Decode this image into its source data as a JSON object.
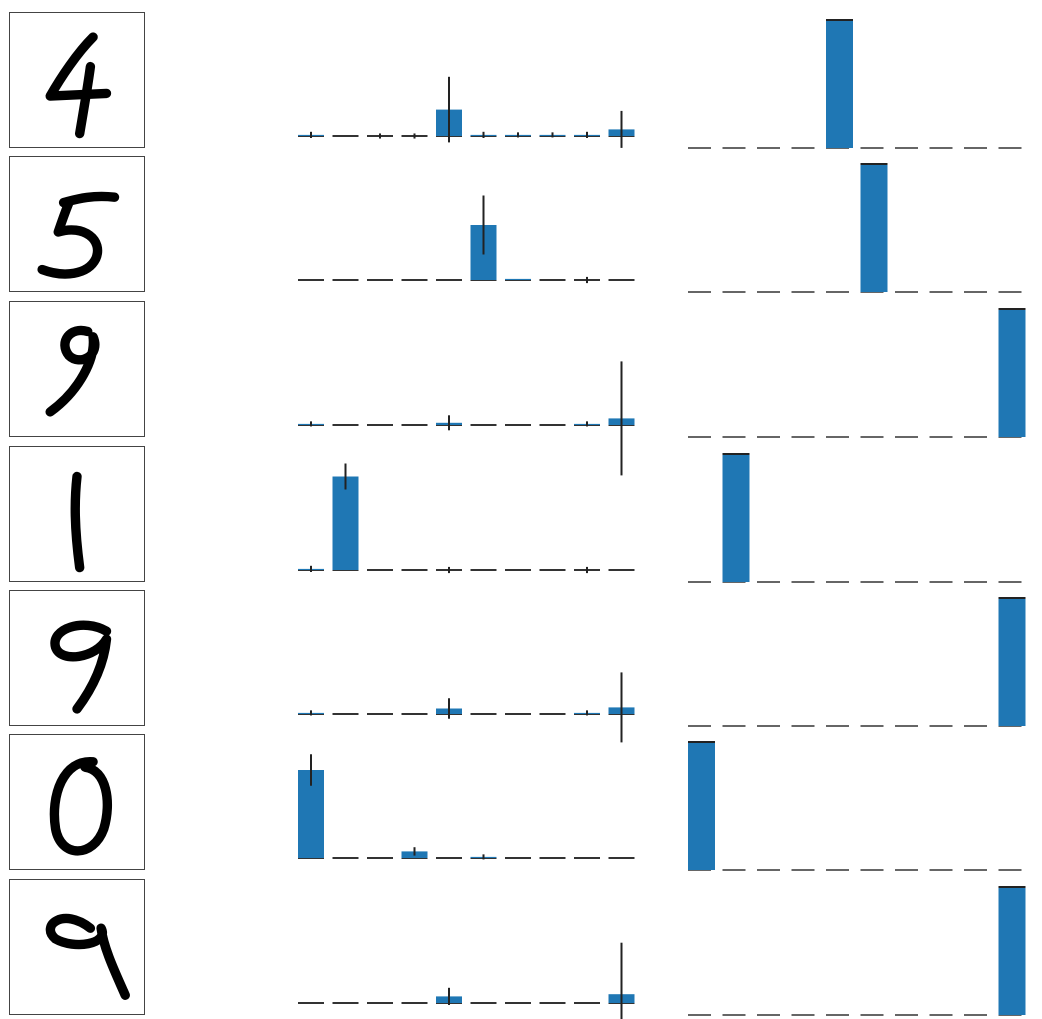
{
  "style": {
    "bar_color": "#1f77b4",
    "error_color": "#222222",
    "baseline_color": "#333333",
    "ink_color": "#000000"
  },
  "chart_data": [
    {
      "type": "bar",
      "panel": "posterior-mean-with-uncertainty",
      "categories": [
        "0",
        "1",
        "2",
        "3",
        "4",
        "5",
        "6",
        "7",
        "8",
        "9"
      ],
      "grid": false,
      "axes": "hidden",
      "rows": [
        {
          "digit_label": "4",
          "values": [
            0.01,
            0.0,
            0.0,
            0.0,
            0.24,
            0.01,
            0.01,
            0.01,
            0.01,
            0.06
          ],
          "errors": [
            0.02,
            0.0,
            0.01,
            0.01,
            0.56,
            0.02,
            0.01,
            0.01,
            0.02,
            0.3
          ]
        },
        {
          "digit_label": "5",
          "values": [
            0.0,
            0.0,
            0.0,
            0.0,
            0.0,
            0.5,
            0.01,
            0.0,
            0.0,
            0.0
          ],
          "errors": [
            0.0,
            0.0,
            0.0,
            0.0,
            0.0,
            0.5,
            0.0,
            0.0,
            0.02,
            0.0
          ]
        },
        {
          "digit_label": "9",
          "values": [
            0.01,
            0.0,
            0.0,
            0.0,
            0.02,
            0.0,
            0.0,
            0.0,
            0.01,
            0.06
          ],
          "errors": [
            0.01,
            0.0,
            0.0,
            0.0,
            0.1,
            0.0,
            0.0,
            0.0,
            0.01,
            1.0
          ]
        },
        {
          "digit_label": "1",
          "values": [
            0.01,
            0.85,
            0.0,
            0.0,
            0.0,
            0.0,
            0.0,
            0.0,
            0.0,
            0.0
          ],
          "errors": [
            0.02,
            0.2,
            0.0,
            0.0,
            0.02,
            0.0,
            0.0,
            0.0,
            0.02,
            0.0
          ]
        },
        {
          "digit_label": "9",
          "values": [
            0.01,
            0.0,
            0.0,
            0.0,
            0.05,
            0.0,
            0.0,
            0.0,
            0.01,
            0.06
          ],
          "errors": [
            0.01,
            0.0,
            0.0,
            0.0,
            0.15,
            0.0,
            0.0,
            0.0,
            0.01,
            0.6
          ]
        },
        {
          "digit_label": "0",
          "values": [
            0.8,
            0.0,
            0.0,
            0.06,
            0.0,
            0.01,
            0.0,
            0.0,
            0.0,
            0.0
          ],
          "errors": [
            0.25,
            0.0,
            0.0,
            0.04,
            0.0,
            0.01,
            0.0,
            0.0,
            0.0,
            0.0
          ]
        },
        {
          "digit_label": "9",
          "values": [
            0.0,
            0.0,
            0.0,
            0.0,
            0.06,
            0.0,
            0.0,
            0.0,
            0.0,
            0.08
          ],
          "errors": [
            0.0,
            0.0,
            0.0,
            0.0,
            0.12,
            0.0,
            0.0,
            0.0,
            0.0,
            0.9
          ]
        }
      ]
    },
    {
      "type": "bar",
      "panel": "predicted-class-probabilities",
      "categories": [
        "0",
        "1",
        "2",
        "3",
        "4",
        "5",
        "6",
        "7",
        "8",
        "9"
      ],
      "grid": false,
      "axes": "hidden",
      "rows": [
        {
          "digit_label": "4",
          "values": [
            0,
            0,
            0,
            0,
            1,
            0,
            0,
            0,
            0,
            0
          ]
        },
        {
          "digit_label": "5",
          "values": [
            0,
            0,
            0,
            0,
            0,
            1,
            0,
            0,
            0,
            0
          ]
        },
        {
          "digit_label": "9",
          "values": [
            0,
            0,
            0,
            0,
            0,
            0,
            0,
            0,
            0,
            1
          ]
        },
        {
          "digit_label": "1",
          "values": [
            0,
            1,
            0,
            0,
            0,
            0,
            0,
            0,
            0,
            0
          ]
        },
        {
          "digit_label": "9",
          "values": [
            0,
            0,
            0,
            0,
            0,
            0,
            0,
            0,
            0,
            1
          ]
        },
        {
          "digit_label": "0",
          "values": [
            1,
            0,
            0,
            0,
            0,
            0,
            0,
            0,
            0,
            0
          ]
        },
        {
          "digit_label": "9",
          "values": [
            0,
            0,
            0,
            0,
            0,
            0,
            0,
            0,
            0,
            1
          ]
        }
      ]
    }
  ]
}
